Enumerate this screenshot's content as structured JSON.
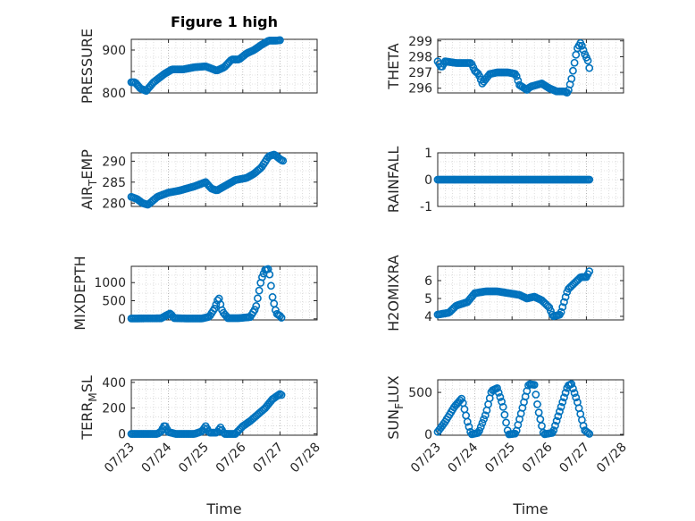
{
  "figure": {
    "title": "Figure 1 high"
  },
  "style": {
    "marker_color": "#0072BD",
    "axis_color": "#262626",
    "grid_color": "#c8c8c8"
  },
  "chart_data": [
    {
      "type": "scatter",
      "ylabel": "PRESSURE",
      "ylim": [
        800,
        925
      ],
      "yticks": [
        800,
        850,
        900
      ],
      "ytick_labels": [
        "800",
        "",
        "900"
      ],
      "xlim": [
        0,
        5
      ],
      "grid": true,
      "anchors": [
        [
          0,
          825
        ],
        [
          0.1,
          825
        ],
        [
          0.25,
          810
        ],
        [
          0.4,
          805
        ],
        [
          0.6,
          825
        ],
        [
          0.9,
          845
        ],
        [
          1.1,
          855
        ],
        [
          1.4,
          855
        ],
        [
          1.7,
          860
        ],
        [
          2.0,
          862
        ],
        [
          2.3,
          852
        ],
        [
          2.5,
          860
        ],
        [
          2.7,
          878
        ],
        [
          2.9,
          878
        ],
        [
          3.1,
          892
        ],
        [
          3.3,
          900
        ],
        [
          3.5,
          912
        ],
        [
          3.7,
          922
        ],
        [
          3.9,
          922
        ],
        [
          4.0,
          923
        ]
      ]
    },
    {
      "type": "scatter",
      "ylabel": "THETA",
      "ylim": [
        295.7,
        299.1
      ],
      "yticks": [
        296,
        297,
        298,
        299
      ],
      "ytick_labels": [
        "296",
        "297",
        "298",
        "299"
      ],
      "xlim": [
        0,
        5
      ],
      "grid": true,
      "anchors": [
        [
          0,
          297.7
        ],
        [
          0.1,
          297.3
        ],
        [
          0.2,
          297.7
        ],
        [
          0.5,
          297.6
        ],
        [
          0.7,
          297.6
        ],
        [
          0.9,
          297.6
        ],
        [
          1.0,
          297.1
        ],
        [
          1.1,
          296.9
        ],
        [
          1.2,
          296.3
        ],
        [
          1.3,
          296.6
        ],
        [
          1.4,
          296.9
        ],
        [
          1.6,
          297.0
        ],
        [
          1.9,
          297.0
        ],
        [
          2.1,
          296.9
        ],
        [
          2.2,
          296.2
        ],
        [
          2.4,
          295.9
        ],
        [
          2.5,
          296.1
        ],
        [
          2.8,
          296.3
        ],
        [
          3.0,
          296.0
        ],
        [
          3.2,
          295.8
        ],
        [
          3.4,
          295.8
        ],
        [
          3.5,
          295.7
        ],
        [
          3.6,
          296.6
        ],
        [
          3.75,
          298.5
        ],
        [
          3.85,
          298.9
        ],
        [
          3.95,
          298.2
        ],
        [
          4.05,
          297.7
        ],
        [
          4.1,
          297.0
        ]
      ]
    },
    {
      "type": "scatter",
      "ylabel": "AIR_TEMP",
      "ylim": [
        279.2,
        292
      ],
      "yticks": [
        280,
        285,
        290
      ],
      "ytick_labels": [
        "280",
        "285",
        "290"
      ],
      "xlim": [
        0,
        5
      ],
      "grid": true,
      "anchors": [
        [
          0,
          281.5
        ],
        [
          0.15,
          281.0
        ],
        [
          0.3,
          280.0
        ],
        [
          0.45,
          279.6
        ],
        [
          0.7,
          281.5
        ],
        [
          1.0,
          282.5
        ],
        [
          1.3,
          283.0
        ],
        [
          1.7,
          284.0
        ],
        [
          2.0,
          285.0
        ],
        [
          2.15,
          283.5
        ],
        [
          2.3,
          283.0
        ],
        [
          2.5,
          284.0
        ],
        [
          2.8,
          285.5
        ],
        [
          3.1,
          286.0
        ],
        [
          3.3,
          287.0
        ],
        [
          3.5,
          288.5
        ],
        [
          3.7,
          291.2
        ],
        [
          3.85,
          291.6
        ],
        [
          4.0,
          290.5
        ],
        [
          4.1,
          290.0
        ]
      ]
    },
    {
      "type": "scatter",
      "ylabel": "RAINFALL",
      "ylim": [
        -1,
        1
      ],
      "yticks": [
        -1,
        0,
        1
      ],
      "ytick_labels": [
        "-1",
        "0",
        "1"
      ],
      "xlim": [
        0,
        5
      ],
      "grid": true,
      "anchors": [
        [
          0,
          0
        ],
        [
          4.1,
          0
        ]
      ]
    },
    {
      "type": "scatter",
      "ylabel": "MIXDEPTH",
      "ylim": [
        -30,
        1450
      ],
      "yticks": [
        0,
        500,
        1000
      ],
      "ytick_labels": [
        "0",
        "500",
        "1000"
      ],
      "xlim": [
        0,
        5
      ],
      "grid": true,
      "anchors": [
        [
          0,
          10
        ],
        [
          0.8,
          15
        ],
        [
          0.95,
          100
        ],
        [
          1.05,
          150
        ],
        [
          1.15,
          20
        ],
        [
          1.5,
          10
        ],
        [
          1.9,
          10
        ],
        [
          2.1,
          60
        ],
        [
          2.25,
          300
        ],
        [
          2.35,
          600
        ],
        [
          2.45,
          200
        ],
        [
          2.6,
          20
        ],
        [
          2.9,
          20
        ],
        [
          3.2,
          50
        ],
        [
          3.35,
          300
        ],
        [
          3.5,
          1100
        ],
        [
          3.6,
          1350
        ],
        [
          3.7,
          1380
        ],
        [
          3.8,
          600
        ],
        [
          3.9,
          150
        ],
        [
          4.0,
          80
        ],
        [
          4.05,
          20
        ]
      ]
    },
    {
      "type": "scatter",
      "ylabel": "H2OMIXRA",
      "ylim": [
        3.8,
        6.8
      ],
      "yticks": [
        4,
        5,
        6
      ],
      "ytick_labels": [
        "4",
        "5",
        "6"
      ],
      "xlim": [
        0,
        5
      ],
      "grid": true,
      "anchors": [
        [
          0,
          4.1
        ],
        [
          0.3,
          4.2
        ],
        [
          0.5,
          4.6
        ],
        [
          0.8,
          4.8
        ],
        [
          1.0,
          5.3
        ],
        [
          1.3,
          5.4
        ],
        [
          1.6,
          5.4
        ],
        [
          1.9,
          5.3
        ],
        [
          2.2,
          5.2
        ],
        [
          2.4,
          5.0
        ],
        [
          2.6,
          5.1
        ],
        [
          2.8,
          4.9
        ],
        [
          3.0,
          4.5
        ],
        [
          3.1,
          4.0
        ],
        [
          3.3,
          4.1
        ],
        [
          3.5,
          5.5
        ],
        [
          3.7,
          5.9
        ],
        [
          3.85,
          6.2
        ],
        [
          4.0,
          6.2
        ],
        [
          4.1,
          6.6
        ]
      ]
    },
    {
      "type": "scatter",
      "ylabel": "TERR_MSL",
      "ylim": [
        -10,
        420
      ],
      "yticks": [
        0,
        200,
        400
      ],
      "ytick_labels": [
        "0",
        "200",
        "400"
      ],
      "xlim": [
        0,
        5
      ],
      "grid": true,
      "anchors": [
        [
          0,
          0
        ],
        [
          0.7,
          0
        ],
        [
          0.8,
          20
        ],
        [
          0.9,
          70
        ],
        [
          1.0,
          15
        ],
        [
          1.2,
          0
        ],
        [
          1.7,
          0
        ],
        [
          1.9,
          20
        ],
        [
          2.0,
          60
        ],
        [
          2.1,
          10
        ],
        [
          2.3,
          10
        ],
        [
          2.4,
          50
        ],
        [
          2.5,
          0
        ],
        [
          2.8,
          0
        ],
        [
          3.0,
          60
        ],
        [
          3.2,
          100
        ],
        [
          3.4,
          150
        ],
        [
          3.6,
          200
        ],
        [
          3.8,
          270
        ],
        [
          4.0,
          310
        ],
        [
          4.05,
          300
        ]
      ]
    },
    {
      "type": "scatter",
      "ylabel": "SUN_FLUX",
      "ylim": [
        -10,
        650
      ],
      "yticks": [
        0,
        500
      ],
      "ytick_labels": [
        "0",
        "500"
      ],
      "xlim": [
        0,
        5
      ],
      "grid": true,
      "anchors": [
        [
          0,
          30
        ],
        [
          0.2,
          150
        ],
        [
          0.45,
          330
        ],
        [
          0.65,
          430
        ],
        [
          0.8,
          150
        ],
        [
          0.9,
          0
        ],
        [
          1.1,
          20
        ],
        [
          1.3,
          250
        ],
        [
          1.45,
          520
        ],
        [
          1.6,
          550
        ],
        [
          1.75,
          350
        ],
        [
          1.9,
          0
        ],
        [
          2.1,
          10
        ],
        [
          2.3,
          350
        ],
        [
          2.45,
          600
        ],
        [
          2.6,
          590
        ],
        [
          2.7,
          300
        ],
        [
          2.85,
          0
        ],
        [
          3.1,
          20
        ],
        [
          3.3,
          300
        ],
        [
          3.5,
          580
        ],
        [
          3.6,
          600
        ],
        [
          3.75,
          400
        ],
        [
          3.95,
          50
        ],
        [
          4.1,
          0
        ]
      ]
    }
  ],
  "x_axis": {
    "label": "Time",
    "tick_labels": [
      "07/23",
      "07/24",
      "07/25",
      "07/26",
      "07/27",
      "07/28"
    ]
  }
}
